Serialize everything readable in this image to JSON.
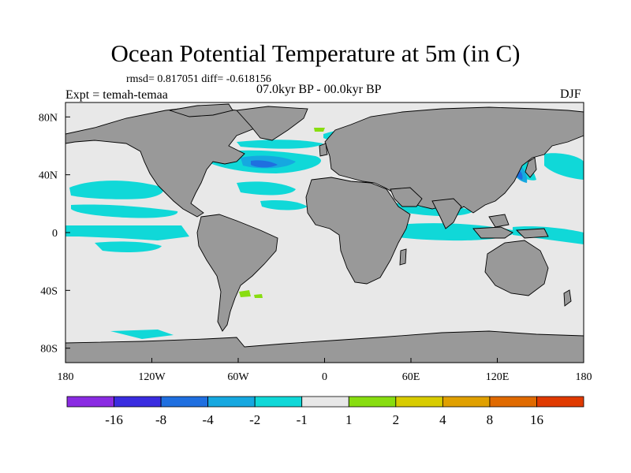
{
  "header": {
    "title": "Ocean Potential Temperature at 5m (in C)",
    "stats": "rmsd= 0.817051 diff= -0.618156",
    "period": "07.0kyr BP - 00.0kyr BP",
    "expt": "Expt = temah-temaa",
    "season": "DJF"
  },
  "chart_data": {
    "type": "heatmap",
    "title": "Ocean Potential Temperature at 5m (in C)",
    "subtitle": "07.0kyr BP - 00.0kyr BP",
    "xlabel": "",
    "ylabel": "",
    "xlim": [
      -180,
      180
    ],
    "ylim": [
      -90,
      90
    ],
    "x_ticks": [
      {
        "value": -180,
        "label": "180"
      },
      {
        "value": -120,
        "label": "120W"
      },
      {
        "value": -60,
        "label": "60W"
      },
      {
        "value": 0,
        "label": "0"
      },
      {
        "value": 60,
        "label": "60E"
      },
      {
        "value": 120,
        "label": "120E"
      },
      {
        "value": 180,
        "label": "180"
      }
    ],
    "y_ticks": [
      {
        "value": 80,
        "label": "80N"
      },
      {
        "value": 40,
        "label": "40N"
      },
      {
        "value": 0,
        "label": "0"
      },
      {
        "value": -40,
        "label": "40S"
      },
      {
        "value": -80,
        "label": "80S"
      }
    ],
    "colorbar": {
      "levels": [
        "-16",
        "-8",
        "-4",
        "-2",
        "-1",
        "1",
        "2",
        "4",
        "8",
        "16"
      ],
      "colors": [
        "#8a2be2",
        "#3a2ce0",
        "#1f6fe0",
        "#16a8e0",
        "#10d8d8",
        "#e8e8e8",
        "#88dd10",
        "#d8cc00",
        "#e0a000",
        "#e06a00",
        "#e03a00"
      ]
    },
    "colors": {
      "land": "#999999",
      "ocean_neutral": "#e8e8e8",
      "cool_1": "#10d8d8",
      "cool_2": "#16a8e0",
      "cool_4": "#1f6fe0",
      "warm_1": "#88dd10"
    }
  }
}
